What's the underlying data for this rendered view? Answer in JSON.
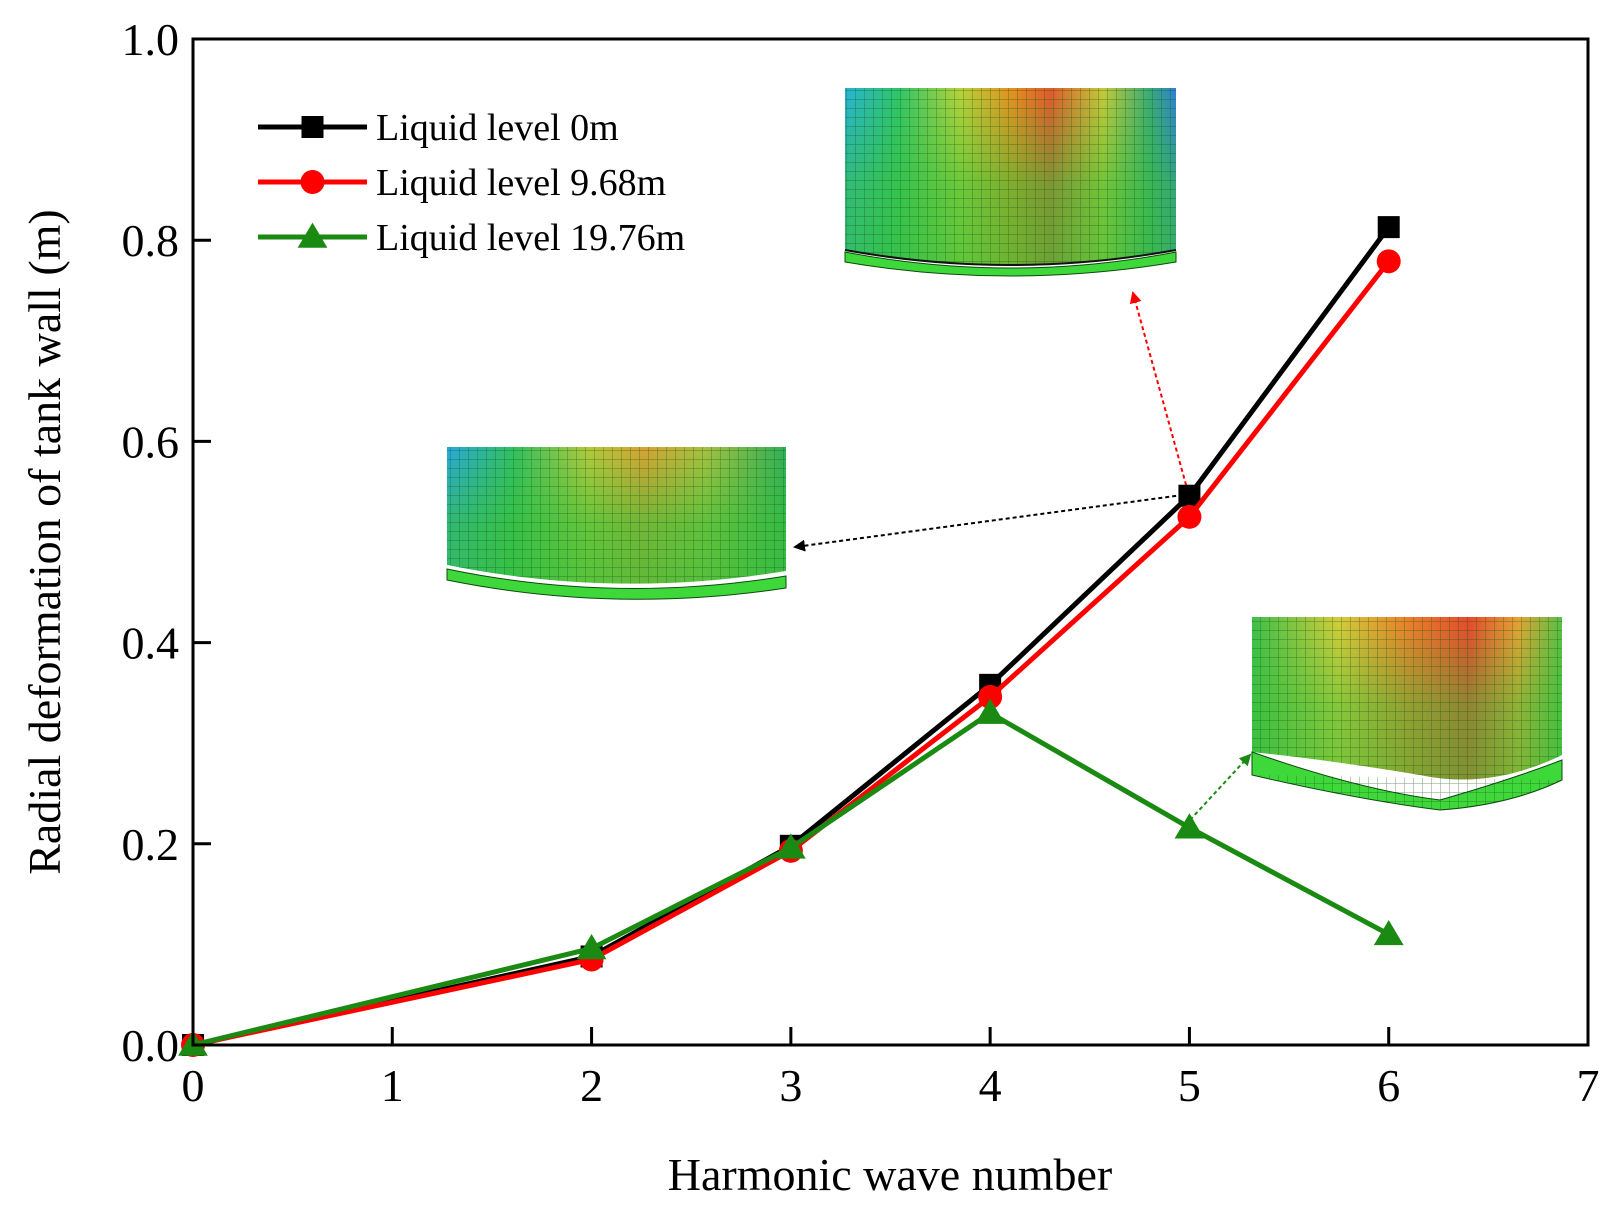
{
  "chart_data": {
    "type": "line",
    "title": "",
    "xlabel": "Harmonic wave number",
    "ylabel": "Radial deformation of tank wall (m)",
    "xlim": [
      0,
      7
    ],
    "ylim": [
      0,
      1.0
    ],
    "xticks": [
      0,
      1,
      2,
      3,
      4,
      5,
      6,
      7
    ],
    "xtick_labels": [
      "0",
      "1",
      "2",
      "3",
      "4",
      "5",
      "6",
      "7"
    ],
    "yticks": [
      0,
      0.2,
      0.4,
      0.6,
      0.8,
      1.0
    ],
    "ytick_labels": [
      "0.0",
      "0.2",
      "0.4",
      "0.6",
      "0.8",
      "1.0"
    ],
    "grid": false,
    "legend_position": "top-left",
    "series": [
      {
        "name": "Liquid level 0m",
        "color": "#000000",
        "marker": "square",
        "x": [
          0,
          2,
          3,
          4,
          5,
          6
        ],
        "y": [
          0.0,
          0.088,
          0.198,
          0.358,
          0.546,
          0.813
        ]
      },
      {
        "name": "Liquid level 9.68m",
        "color": "#ff0000",
        "marker": "circle",
        "x": [
          0,
          2,
          3,
          4,
          5,
          6
        ],
        "y": [
          0.0,
          0.085,
          0.193,
          0.346,
          0.525,
          0.779
        ]
      },
      {
        "name": "Liquid level 19.76m",
        "color": "#1a8a12",
        "marker": "triangle",
        "x": [
          0,
          2,
          3,
          4,
          5,
          6
        ],
        "y": [
          0.0,
          0.096,
          0.196,
          0.33,
          0.216,
          0.11
        ]
      }
    ],
    "annotations": [
      {
        "type": "inset-image",
        "description": "deformed tank wall contour",
        "points_to": {
          "x": 5,
          "y": 0.546
        },
        "arrow_color": "#000000"
      },
      {
        "type": "inset-image",
        "description": "deformed tank wall contour",
        "points_to": {
          "x": 5,
          "y": 0.525
        },
        "arrow_color": "#ff0000"
      },
      {
        "type": "inset-image",
        "description": "deformed tank wall contour",
        "points_to": {
          "x": 5,
          "y": 0.216
        },
        "arrow_color": "#1a8a12"
      }
    ]
  }
}
